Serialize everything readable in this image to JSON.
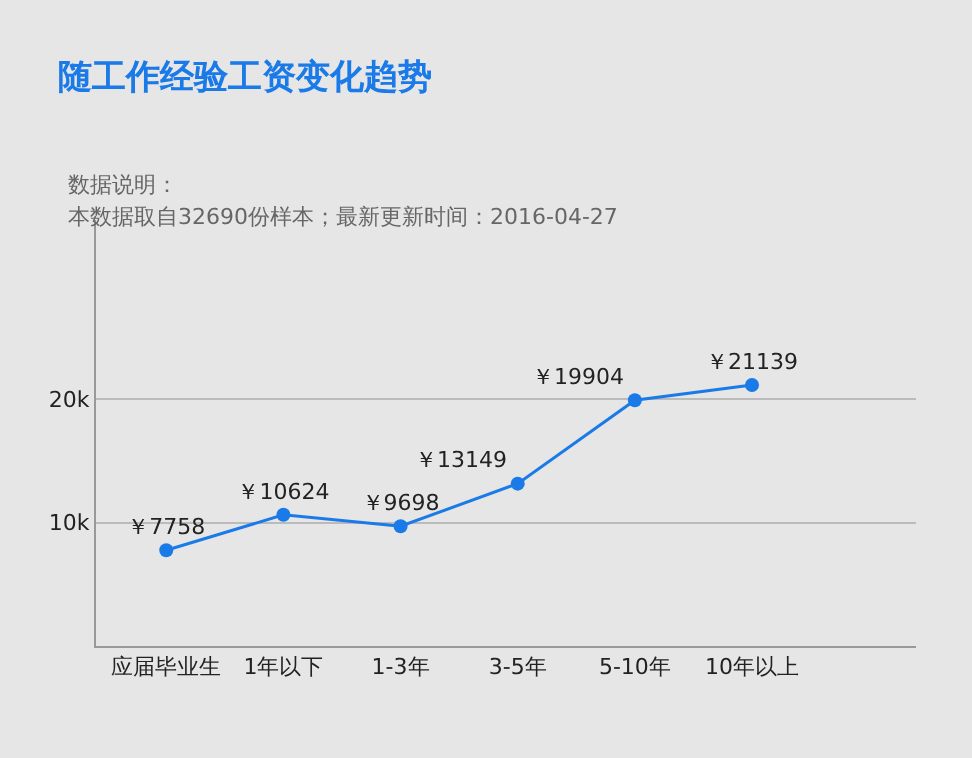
{
  "chart_data": {
    "type": "line",
    "title": "随工作经验工资变化趋势",
    "subtitle": "数据说明：",
    "annotations": [
      "本数据取自32690份样本；最新更新时间：2016-04-27"
    ],
    "categories": [
      "应届毕业生",
      "1年以下",
      "1-3年",
      "3-5年",
      "5-10年",
      "10年以上"
    ],
    "series": [
      {
        "color": "#1a7ae8",
        "values": [
          7758,
          10624,
          9698,
          13149,
          19904,
          21139
        ],
        "value_labels": [
          "￥7758",
          "￥10624",
          "￥9698",
          "￥13149",
          "￥19904",
          "￥21139"
        ]
      }
    ],
    "ylim": [
      0,
      34500
    ],
    "yticks": [
      {
        "value": 10000,
        "label": "10k"
      },
      {
        "value": 20000,
        "label": "20k"
      }
    ],
    "grid": "y",
    "legend": false,
    "marker": "circle",
    "line_style": "solid"
  }
}
